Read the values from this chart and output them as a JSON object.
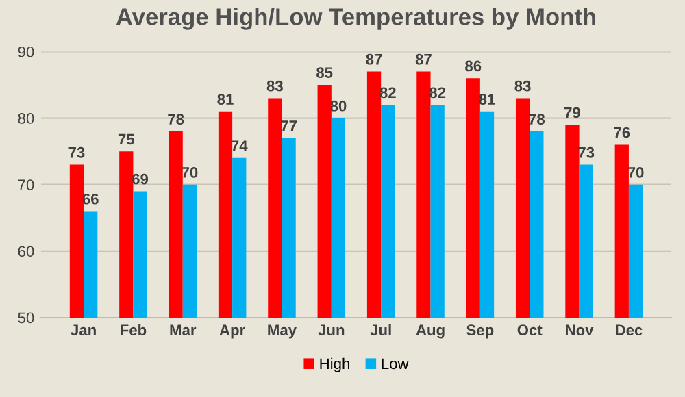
{
  "chart_data": {
    "type": "bar",
    "title": "Average High/Low Temperatures by Month",
    "categories": [
      "Jan",
      "Feb",
      "Mar",
      "Apr",
      "May",
      "Jun",
      "Jul",
      "Aug",
      "Sep",
      "Oct",
      "Nov",
      "Dec"
    ],
    "series": [
      {
        "name": "High",
        "color": "#ff0000",
        "values": [
          73,
          75,
          78,
          81,
          83,
          85,
          87,
          87,
          86,
          83,
          79,
          76
        ]
      },
      {
        "name": "Low",
        "color": "#00b0f0",
        "values": [
          66,
          69,
          70,
          74,
          77,
          80,
          82,
          82,
          81,
          78,
          73,
          70
        ]
      }
    ],
    "ylim": [
      50,
      90
    ],
    "yticks": [
      50,
      60,
      70,
      80,
      90
    ],
    "grid": "y",
    "legend": "bottom",
    "data_labels": true
  }
}
